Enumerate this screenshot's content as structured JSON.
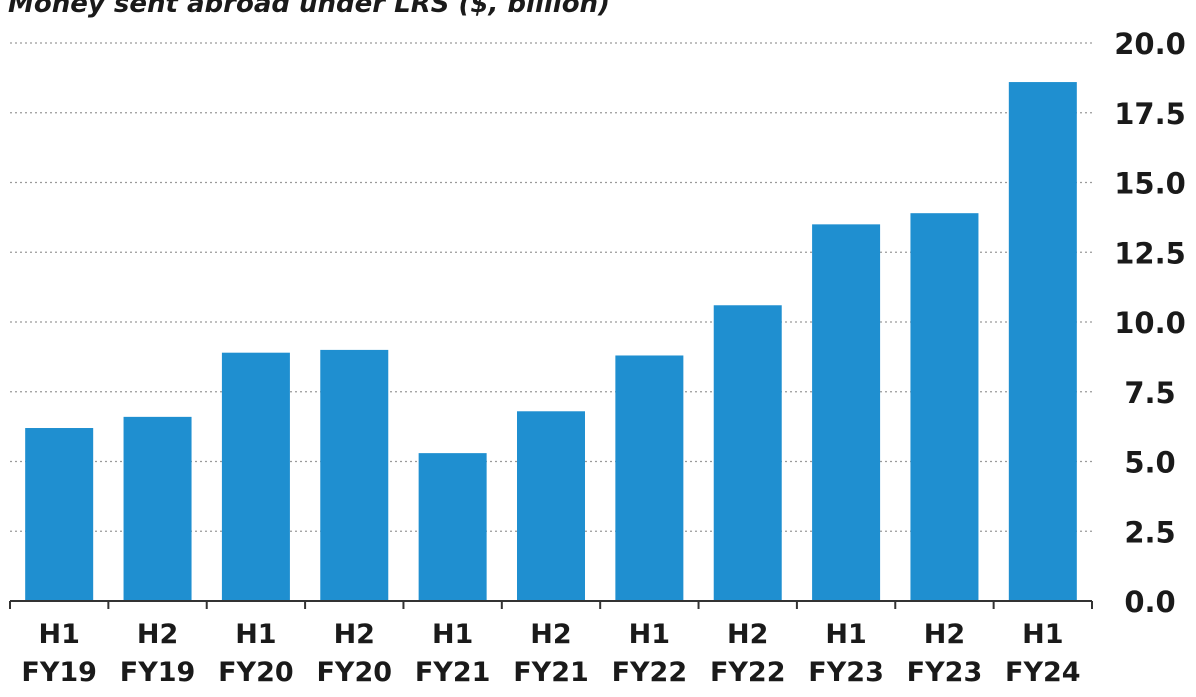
{
  "chart_data": {
    "type": "bar",
    "title": "Money sent abroad under LRS ($, billion)",
    "categories": [
      [
        "H1",
        "FY19"
      ],
      [
        "H2",
        "FY19"
      ],
      [
        "H1",
        "FY20"
      ],
      [
        "H2",
        "FY20"
      ],
      [
        "H1",
        "FY21"
      ],
      [
        "H2",
        "FY21"
      ],
      [
        "H1",
        "FY22"
      ],
      [
        "H2",
        "FY22"
      ],
      [
        "H1",
        "FY23"
      ],
      [
        "H2",
        "FY23"
      ],
      [
        "H1",
        "FY24"
      ]
    ],
    "values": [
      6.2,
      6.6,
      8.9,
      9.0,
      5.3,
      6.8,
      8.8,
      10.6,
      13.5,
      13.9,
      18.6
    ],
    "ylim": [
      0,
      20
    ],
    "yticks": [
      "0.0",
      "2.5",
      "5.0",
      "7.5",
      "10.0",
      "12.5",
      "15.0",
      "17.5",
      "20.0"
    ],
    "y_axis_side": "right",
    "grid": true,
    "bar_color": "#1f8fd0"
  }
}
